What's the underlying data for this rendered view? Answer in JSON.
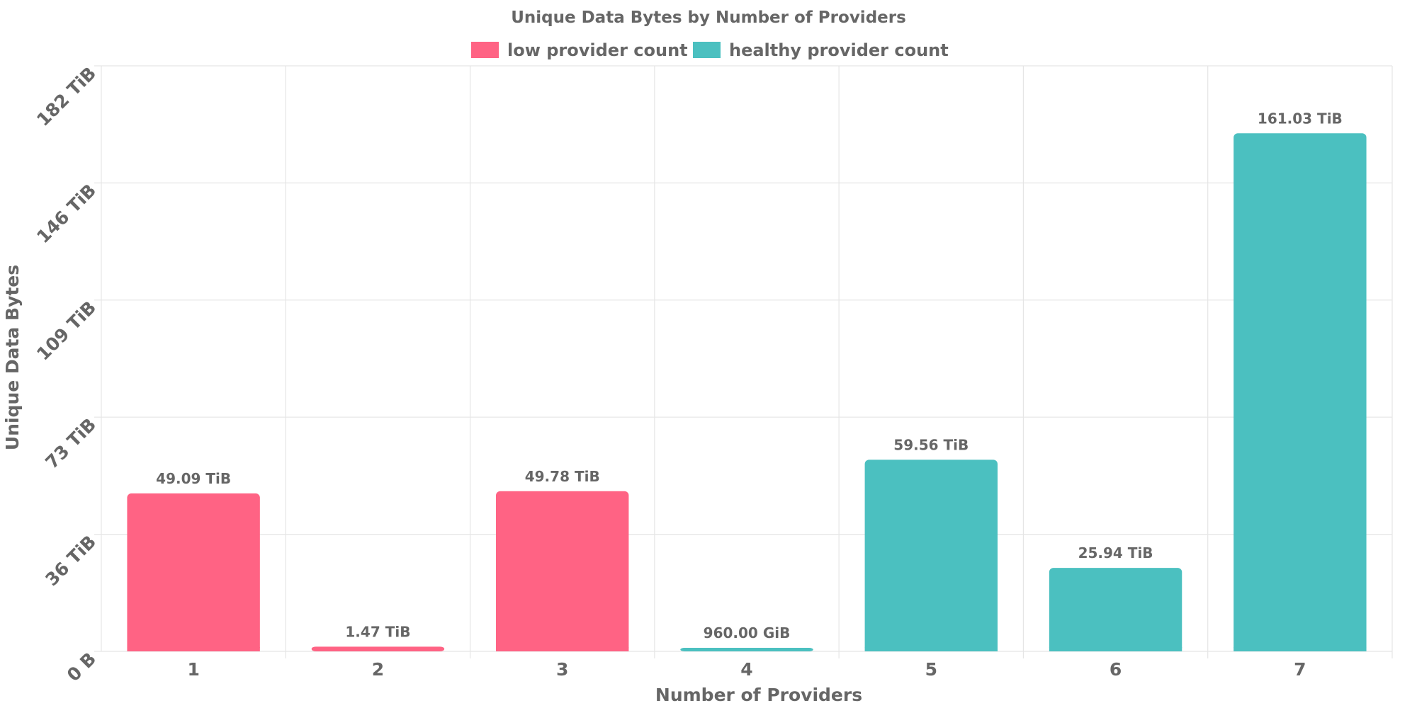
{
  "chart_data": {
    "type": "bar",
    "title": "Unique Data Bytes by Number of Providers",
    "xlabel": "Number of Providers",
    "ylabel": "Unique Data Bytes",
    "categories": [
      "1",
      "2",
      "3",
      "4",
      "5",
      "6",
      "7"
    ],
    "values": [
      49.09,
      1.47,
      49.78,
      0.9375,
      59.56,
      25.94,
      161.03
    ],
    "value_unit": "TiB",
    "data_labels": [
      "49.09 TiB",
      "1.47 TiB",
      "49.78 TiB",
      "960.00 GiB",
      "59.56 TiB",
      "25.94 TiB",
      "161.03 TiB"
    ],
    "bar_series": [
      0,
      0,
      0,
      1,
      1,
      1,
      1
    ],
    "series": [
      {
        "name": "low provider count",
        "color": "#ff6384"
      },
      {
        "name": "healthy provider count",
        "color": "#4bc0c0"
      }
    ],
    "yticks": [
      0,
      36.4,
      72.8,
      109.2,
      145.6,
      182
    ],
    "ytick_labels": [
      "0 B",
      "36 TiB",
      "73 TiB",
      "109 TiB",
      "146 TiB",
      "182 TiB"
    ],
    "ylim": [
      0,
      182
    ],
    "grid": true,
    "legend_position": "top"
  }
}
